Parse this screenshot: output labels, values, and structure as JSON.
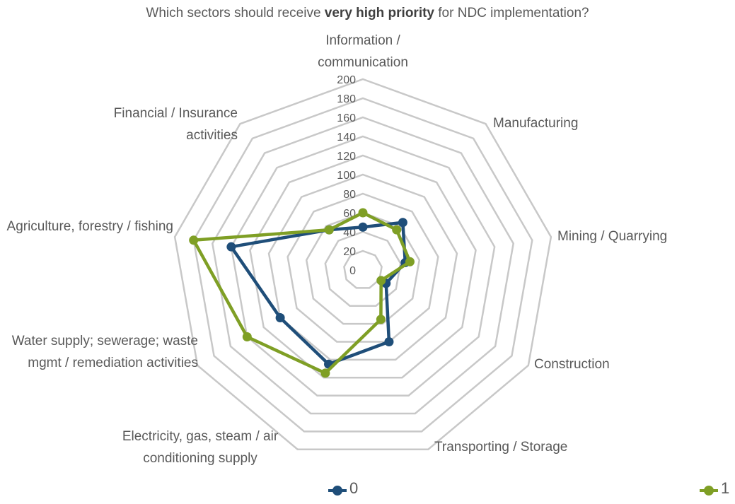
{
  "chart_data": {
    "type": "radar",
    "title": {
      "before": "Which sectors should receive ",
      "bold": "very high priority",
      "after": " for NDC implementation?"
    },
    "categories": [
      "Information / communication",
      "Manufacturing",
      "Mining / Quarrying",
      "Construction",
      "Transporting / Storage",
      "Electricity, gas, steam / air conditioning supply",
      "Water supply; sewerage; waste mgmt / remediation activities",
      "Agriculture, forestry / fishing",
      "Financial / Insurance activities"
    ],
    "series": [
      {
        "name": "0",
        "color": "#1f4e79",
        "values": [
          45,
          65,
          45,
          28,
          80,
          105,
          100,
          140,
          55
        ]
      },
      {
        "name": "1",
        "color": "#7f9f25",
        "values": [
          60,
          55,
          50,
          22,
          55,
          115,
          140,
          180,
          55
        ]
      }
    ],
    "ylim": [
      0,
      200
    ],
    "yticks": [
      0,
      20,
      40,
      60,
      80,
      100,
      120,
      140,
      160,
      180,
      200
    ],
    "grid": true
  }
}
